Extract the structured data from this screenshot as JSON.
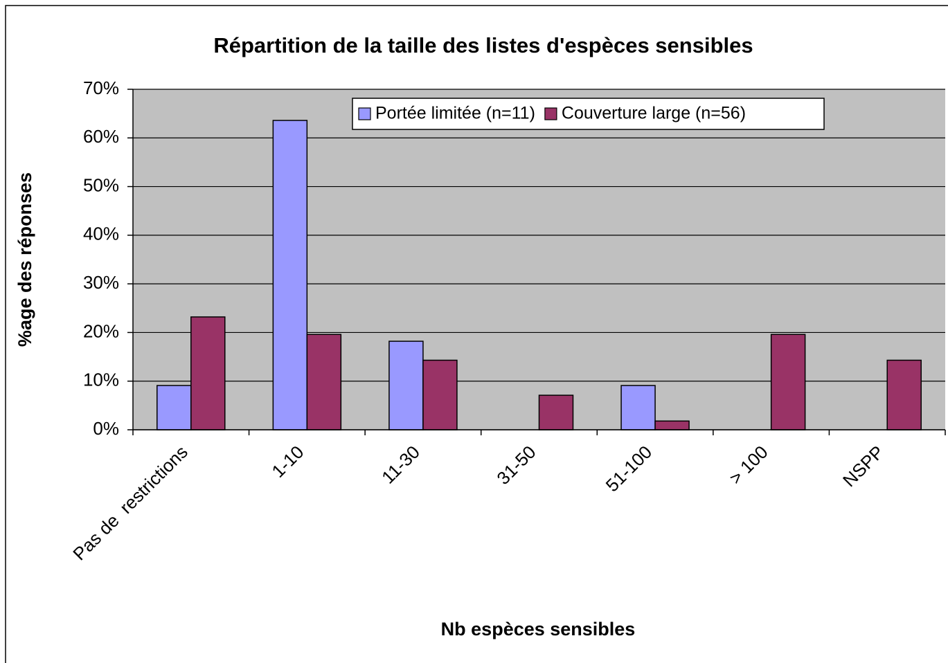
{
  "chart_data": {
    "type": "bar",
    "title": "Répartition de la taille des listes d'espèces sensibles",
    "x_label": "Nb espèces sensibles",
    "y_label": "%age des réponses",
    "categories": [
      "Pas de  restrictions",
      "1-10",
      "11-30",
      "31-50",
      "51-100",
      "> 100",
      "NSPP"
    ],
    "series": [
      {
        "name": "Portée limitée (n=11)",
        "color": "#9999ff",
        "values": [
          9.1,
          63.6,
          18.2,
          0,
          9.1,
          0,
          0
        ]
      },
      {
        "name": "Couverture large (n=56)",
        "color": "#993366",
        "values": [
          23.2,
          19.6,
          14.3,
          7.1,
          1.8,
          19.6,
          14.3
        ]
      }
    ],
    "ylim": [
      0,
      70
    ],
    "yticks": [
      {
        "value": 0,
        "label": "0%"
      },
      {
        "value": 10,
        "label": "10%"
      },
      {
        "value": 20,
        "label": "20%"
      },
      {
        "value": 30,
        "label": "30%"
      },
      {
        "value": 40,
        "label": "40%"
      },
      {
        "value": 50,
        "label": "50%"
      },
      {
        "value": 60,
        "label": "60%"
      },
      {
        "value": 70,
        "label": "70%"
      }
    ],
    "grid": true,
    "legend": "top-right",
    "plot_background": "#c0c0c0"
  }
}
